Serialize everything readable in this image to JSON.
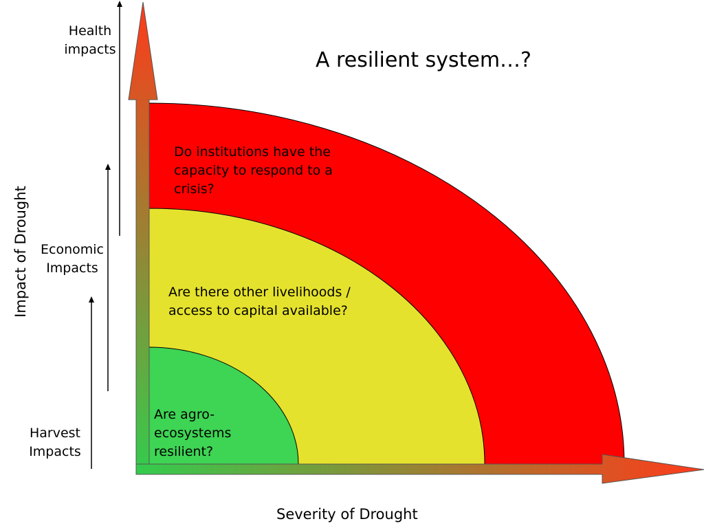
{
  "title": "A resilient system…?",
  "x_axis_label": "Severity of Drought",
  "y_axis_label": "Impact of Drought",
  "impact_levels": [
    {
      "label": "Health impacts"
    },
    {
      "label": "Economic Impacts"
    },
    {
      "label": "Harvest Impacts"
    }
  ],
  "zones": [
    {
      "question": "Do institutions have the capacity to respond to a crisis?",
      "color": "#ff0000"
    },
    {
      "question": "Are there other livelihoods / access to capital available?",
      "color": "#e5e22d"
    },
    {
      "question": "Are agro-ecosystems resilient?",
      "color": "#3ed454"
    }
  ],
  "colors": {
    "arrow_start": "#33cc4d",
    "arrow_end": "#ff3a1a"
  }
}
